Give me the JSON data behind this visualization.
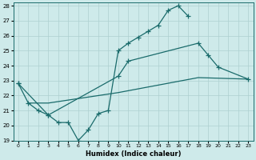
{
  "xlabel": "Humidex (Indice chaleur)",
  "background_color": "#ceeaea",
  "grid_color": "#aed0d0",
  "line_color": "#1a6b6b",
  "xlim": [
    -0.5,
    23.5
  ],
  "ylim": [
    19,
    28.2
  ],
  "yticks": [
    19,
    20,
    21,
    22,
    23,
    24,
    25,
    26,
    27,
    28
  ],
  "xticks": [
    0,
    1,
    2,
    3,
    4,
    5,
    6,
    7,
    8,
    9,
    10,
    11,
    12,
    13,
    14,
    15,
    16,
    17,
    18,
    19,
    20,
    21,
    22,
    23
  ],
  "line1_x": [
    0,
    1,
    2,
    3,
    4,
    5,
    6,
    7,
    8,
    9,
    10,
    11,
    12,
    13,
    14,
    15,
    16,
    17
  ],
  "line1_y": [
    22.8,
    21.5,
    21.0,
    20.7,
    20.2,
    20.2,
    19.0,
    19.7,
    20.8,
    21.0,
    25.0,
    25.5,
    25.9,
    26.3,
    26.7,
    27.7,
    28.0,
    27.3
  ],
  "line2_x": [
    0,
    3,
    10,
    11,
    18,
    19,
    20,
    23
  ],
  "line2_y": [
    22.8,
    20.7,
    23.3,
    24.3,
    25.5,
    24.7,
    23.9,
    23.1
  ],
  "line3_x": [
    1,
    3,
    10,
    18,
    23
  ],
  "line3_y": [
    21.5,
    21.5,
    22.2,
    23.2,
    23.1
  ]
}
